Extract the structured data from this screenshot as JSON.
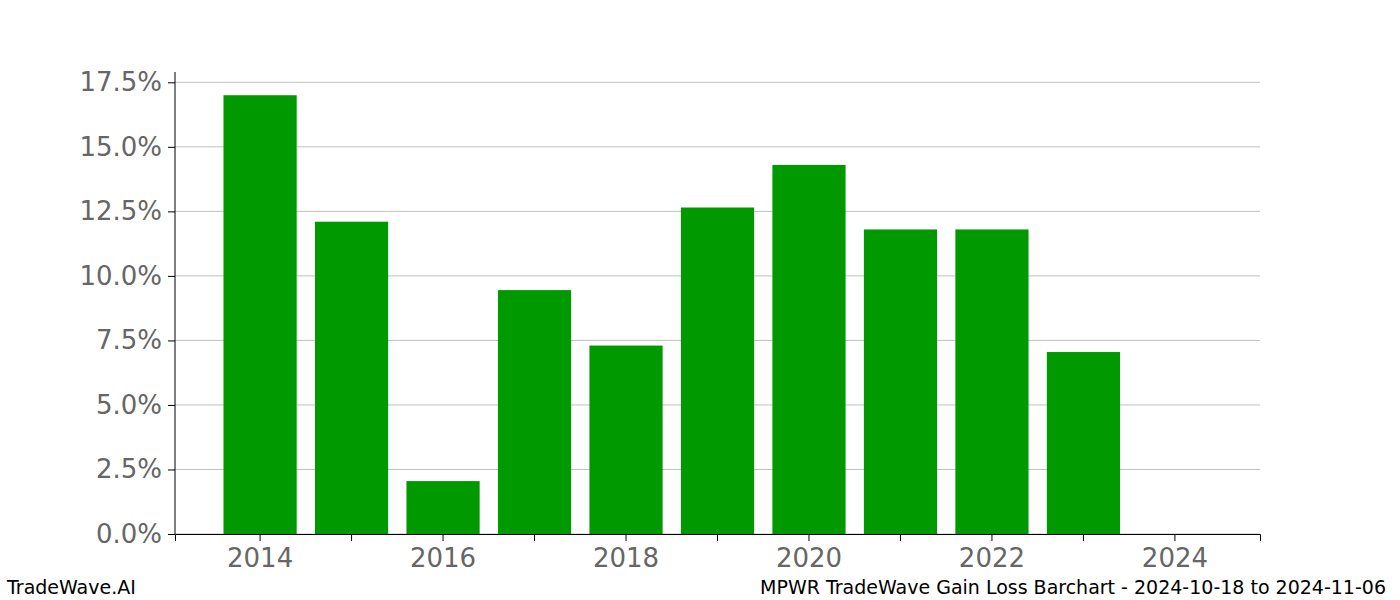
{
  "chart_data": {
    "type": "bar",
    "title": "MPWR TradeWave Gain Loss Barchart - 2024-10-18 to 2024-11-06",
    "annotations": [
      "TradeWave.AI"
    ],
    "categories": [
      "2014",
      null,
      "2016",
      null,
      "2018",
      null,
      "2020",
      null,
      "2022",
      null,
      "2024"
    ],
    "values": [
      17.0,
      12.1,
      2.05,
      9.45,
      7.3,
      12.65,
      14.3,
      11.8,
      11.8,
      7.05,
      0
    ],
    "color": "#009900",
    "ylim": [
      0,
      17.9
    ],
    "yticks": [
      {
        "value": 0,
        "label": "0.0%"
      },
      {
        "value": 2.5,
        "label": "2.5%"
      },
      {
        "value": 5,
        "label": "5.0%"
      },
      {
        "value": 7.5,
        "label": "7.5%"
      },
      {
        "value": 10,
        "label": "10.0%"
      },
      {
        "value": 12.5,
        "label": "12.5%"
      },
      {
        "value": 15,
        "label": "15.0%"
      },
      {
        "value": 17.5,
        "label": "17.5%"
      }
    ],
    "grid": true
  }
}
